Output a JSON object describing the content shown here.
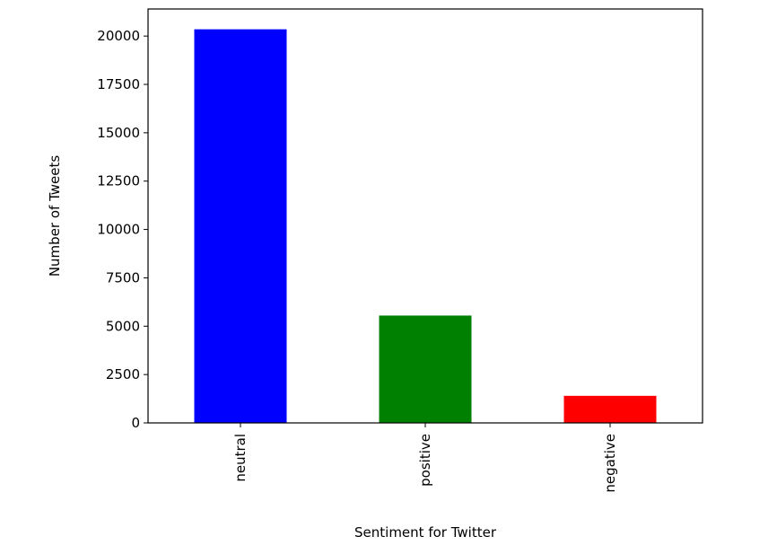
{
  "chart_data": {
    "type": "bar",
    "title": "",
    "categories": [
      "neutral",
      "positive",
      "negative"
    ],
    "values": [
      20350,
      5550,
      1400
    ],
    "colors": [
      "#0000ff",
      "#008000",
      "#ff0000"
    ],
    "xlabel": "Sentiment for Twitter",
    "ylabel": "Number of Tweets",
    "ylim": [
      0,
      21400
    ],
    "yticks": [
      0,
      2500,
      5000,
      7500,
      10000,
      12500,
      15000,
      17500,
      20000
    ],
    "ytick_labels": [
      "0",
      "2500",
      "5000",
      "7500",
      "10000",
      "12500",
      "15000",
      "17500",
      "20000"
    ],
    "grid": false,
    "legend": "none"
  }
}
